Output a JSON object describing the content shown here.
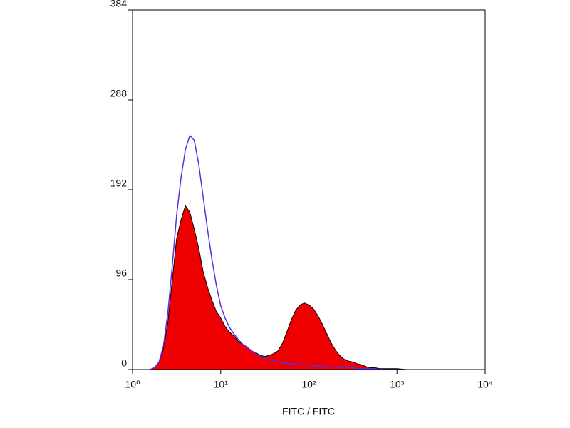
{
  "chart_data": {
    "type": "histogram-overlay",
    "xlabel": "FITC / FITC",
    "xscale": "log",
    "xlim": [
      1,
      10000
    ],
    "xticks": [
      {
        "value": 1,
        "label": "10⁰"
      },
      {
        "value": 10,
        "label": "10¹"
      },
      {
        "value": 100,
        "label": "10²"
      },
      {
        "value": 1000,
        "label": "10³"
      },
      {
        "value": 10000,
        "label": "10⁴"
      }
    ],
    "ylim": [
      0,
      384
    ],
    "yticks": [
      0,
      96,
      192,
      288,
      384
    ],
    "x": [
      1.585,
      1.778,
      1.995,
      2.239,
      2.512,
      2.818,
      3.162,
      3.548,
      3.981,
      4.467,
      5.012,
      5.623,
      6.31,
      7.079,
      7.943,
      8.913,
      10,
      11.22,
      12.59,
      14.13,
      15.85,
      17.78,
      19.95,
      22.39,
      25.12,
      28.18,
      31.62,
      35.48,
      39.81,
      44.67,
      50.12,
      56.23,
      63.1,
      70.79,
      79.43,
      89.13,
      100,
      112.2,
      125.9,
      141.3,
      158.5,
      177.8,
      199.5,
      223.9,
      251.2,
      281.8,
      316.2,
      354.8,
      398.1,
      446.7,
      501.2,
      562.3,
      631,
      794.3,
      1000,
      1259
    ],
    "series": [
      {
        "color": "#ee0000",
        "outline": "#000000",
        "filled": true,
        "values": [
          0,
          2,
          8,
          22,
          50,
          95,
          140,
          160,
          175,
          168,
          150,
          130,
          105,
          88,
          74,
          62,
          55,
          46,
          40,
          36,
          30,
          27,
          24,
          20,
          18,
          15,
          14,
          15,
          17,
          20,
          28,
          40,
          53,
          63,
          69,
          71,
          69,
          65,
          58,
          49,
          39,
          29,
          21,
          15,
          11,
          9,
          8,
          6,
          5,
          3,
          2,
          2,
          1,
          1,
          1,
          0
        ]
      },
      {
        "color": "#5a2ee0",
        "filled": false,
        "values": [
          0,
          2,
          8,
          25,
          60,
          110,
          165,
          205,
          235,
          250,
          245,
          220,
          185,
          150,
          118,
          90,
          68,
          55,
          45,
          38,
          32,
          27,
          24,
          20,
          17,
          14,
          12,
          10,
          9,
          8,
          7,
          7,
          6,
          6,
          5,
          5,
          5,
          4,
          4,
          4,
          3,
          3,
          3,
          2,
          2,
          2,
          2,
          1,
          1,
          1,
          1,
          1,
          0,
          0,
          0,
          0
        ]
      }
    ]
  }
}
